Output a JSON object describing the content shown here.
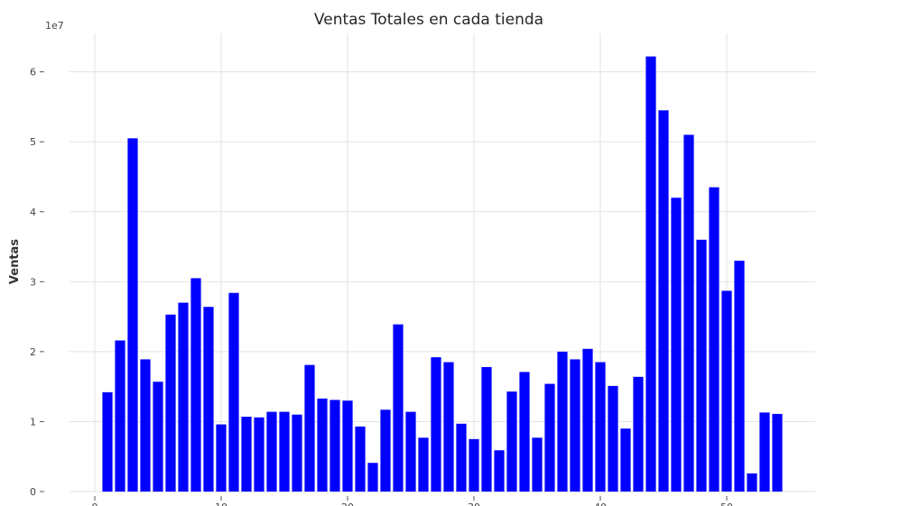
{
  "chart_data": {
    "type": "bar",
    "title": "Ventas Totales en cada tienda",
    "xlabel": "",
    "ylabel": "Ventas",
    "y_scale_label": "1e7",
    "xlim": [
      -2,
      57
    ],
    "ylim": [
      0,
      65500000
    ],
    "x_ticks": [
      0,
      10,
      20,
      30,
      40,
      50
    ],
    "y_ticks": [
      0,
      10000000,
      20000000,
      30000000,
      40000000,
      50000000,
      60000000
    ],
    "y_tick_labels": [
      "0",
      "1",
      "2",
      "3",
      "4",
      "5",
      "6"
    ],
    "grid": true,
    "bar_color": "#0000ff",
    "x": [
      1,
      2,
      3,
      4,
      5,
      6,
      7,
      8,
      9,
      10,
      11,
      12,
      13,
      14,
      15,
      16,
      17,
      18,
      19,
      20,
      21,
      22,
      23,
      24,
      25,
      26,
      27,
      28,
      29,
      30,
      31,
      32,
      33,
      34,
      35,
      36,
      37,
      38,
      39,
      40,
      41,
      42,
      43,
      44,
      45,
      46,
      47,
      48,
      49,
      50,
      51,
      52,
      53,
      54
    ],
    "values": [
      14200000,
      21600000,
      50500000,
      18900000,
      15700000,
      25300000,
      27000000,
      30500000,
      26400000,
      9600000,
      28400000,
      10700000,
      10600000,
      11400000,
      11400000,
      11000000,
      18100000,
      13300000,
      13100000,
      13000000,
      9300000,
      4100000,
      11700000,
      23900000,
      11400000,
      7700000,
      19200000,
      18500000,
      9700000,
      7500000,
      17800000,
      5900000,
      14300000,
      17100000,
      7700000,
      15400000,
      20000000,
      18900000,
      20400000,
      18500000,
      15100000,
      9000000,
      16400000,
      62200000,
      54500000,
      42000000,
      51000000,
      36000000,
      43500000,
      28700000,
      33000000,
      2600000,
      11300000,
      11100000
    ]
  }
}
